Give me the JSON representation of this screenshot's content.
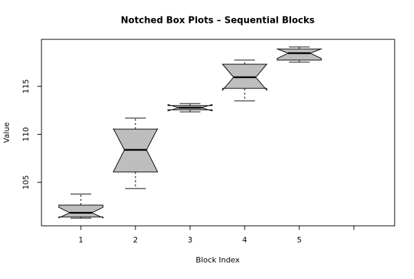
{
  "chart_data": {
    "type": "boxplot",
    "title": "Notched Box Plots – Sequential Blocks",
    "x_label": "Block Index",
    "y_label": "Value",
    "categories": [
      "1",
      "2",
      "3",
      "4",
      "5",
      null
    ],
    "boxes": [
      {
        "whisker_low": 101.26,
        "q1": 101.4,
        "median": 101.83,
        "q3": 102.63,
        "whisker_high": 103.78,
        "notch_low": 101.3,
        "notch_high": 102.4
      },
      {
        "whisker_low": 104.35,
        "q1": 106.08,
        "median": 108.38,
        "q3": 110.54,
        "whisker_high": 111.69,
        "notch_low": 106.1,
        "notch_high": 110.6
      },
      {
        "whisker_low": 112.34,
        "q1": 112.55,
        "median": 112.77,
        "q3": 112.99,
        "whisker_high": 113.2,
        "notch_low": 112.45,
        "notch_high": 113.1
      },
      {
        "whisker_low": 113.49,
        "q1": 114.78,
        "median": 115.94,
        "q3": 117.3,
        "whisker_high": 117.73,
        "notch_low": 114.6,
        "notch_high": 117.3
      },
      {
        "whisker_low": 117.52,
        "q1": 117.73,
        "median": 118.45,
        "q3": 118.88,
        "whisker_high": 119.1,
        "notch_low": 117.9,
        "notch_high": 118.9
      },
      null
    ],
    "color": "#bebebe",
    "ylim": [
      100.47,
      119.89
    ],
    "yticks": [
      105,
      110,
      115
    ]
  }
}
